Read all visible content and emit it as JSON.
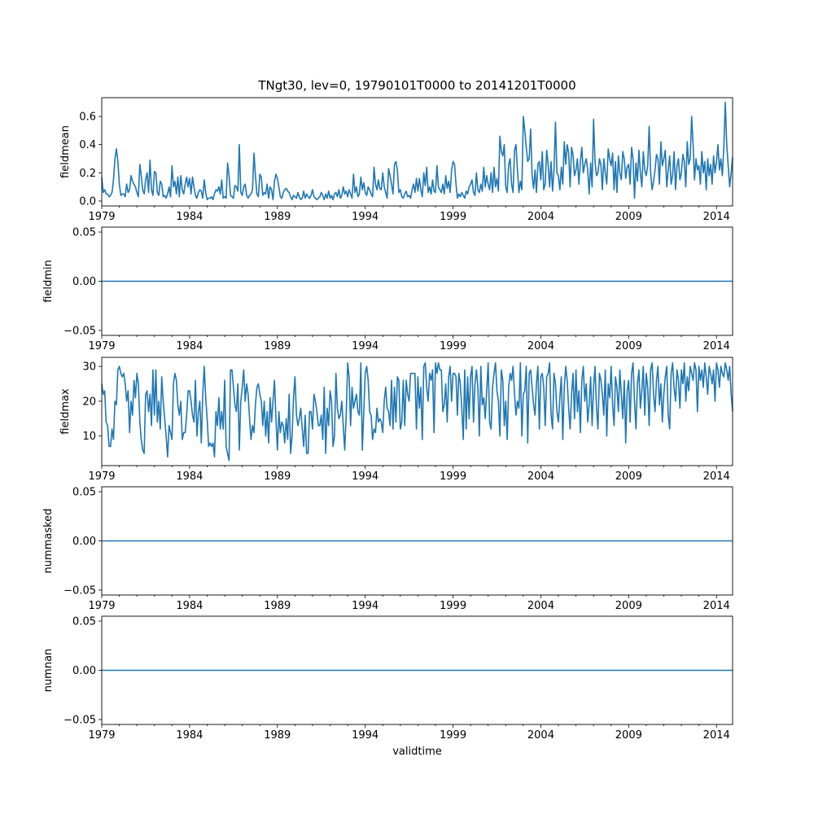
{
  "chart_data": {
    "type": "line",
    "title": "TNgt30, lev=0, 19790101T0000 to 20141201T0000",
    "xlabel": "validtime",
    "x_start": "1979-01",
    "x_end": "2014-12",
    "x_frequency": "monthly",
    "x_tick_labels": [
      "1979",
      "1984",
      "1989",
      "1994",
      "1999",
      "2004",
      "2009",
      "2014"
    ],
    "line_color": "#1f77b4",
    "grid": false,
    "panels": [
      {
        "ylabel": "fieldmean",
        "ylim": [
          -0.035,
          0.733
        ],
        "yticks": [
          0.0,
          0.2,
          0.4,
          0.6
        ],
        "ytick_labels": [
          "0.0",
          "0.2",
          "0.4",
          "0.6"
        ],
        "values": [
          0.17,
          0.06,
          0.08,
          0.05,
          0.05,
          0.03,
          0.04,
          0.06,
          0.15,
          0.3,
          0.37,
          0.28,
          0.12,
          0.04,
          0.05,
          0.05,
          0.03,
          0.12,
          0.06,
          0.08,
          0.18,
          0.14,
          0.12,
          0.1,
          0.06,
          0.03,
          0.26,
          0.18,
          0.08,
          0.05,
          0.15,
          0.2,
          0.06,
          0.29,
          0.08,
          0.04,
          0.21,
          0.2,
          0.06,
          0.04,
          0.14,
          0.12,
          0.03,
          0.04,
          0.02,
          0.05,
          0.1,
          0.03,
          0.25,
          0.1,
          0.14,
          0.05,
          0.17,
          0.03,
          0.18,
          0.08,
          0.05,
          0.12,
          0.17,
          0.1,
          0.16,
          0.05,
          0.17,
          0.1,
          0.04,
          0.02,
          0.06,
          0.08,
          0.07,
          0.02,
          0.15,
          0.06,
          0.01,
          0.02,
          0.02,
          0.03,
          0.01,
          0.05,
          0.08,
          0.07,
          0.1,
          0.05,
          0.15,
          0.02,
          0.03,
          0.02,
          0.27,
          0.18,
          0.04,
          0.03,
          0.02,
          0.11,
          0.1,
          0.07,
          0.4,
          0.06,
          0.04,
          0.1,
          0.12,
          0.04,
          0.02,
          0.04,
          0.05,
          0.08,
          0.34,
          0.18,
          0.05,
          0.03,
          0.19,
          0.17,
          0.04,
          0.06,
          0.05,
          0.12,
          0.02,
          0.1,
          0.08,
          0.01,
          0.14,
          0.19,
          0.16,
          0.1,
          0.03,
          0.02,
          0.06,
          0.08,
          0.09,
          0.07,
          0.06,
          0.03,
          0.01,
          0.04,
          0.03,
          0.02,
          0.06,
          0.03,
          0.01,
          0.02,
          0.07,
          0.02,
          0.05,
          0.03,
          0.02,
          0.04,
          0.08,
          0.03,
          0.02,
          0.01,
          0.02,
          0.03,
          0.06,
          0.04,
          0.01,
          0.05,
          0.02,
          0.07,
          0.02,
          0.04,
          0.01,
          0.05,
          0.06,
          0.03,
          0.08,
          0.02,
          0.04,
          0.1,
          0.05,
          0.07,
          0.03,
          0.08,
          0.05,
          0.02,
          0.19,
          0.06,
          0.1,
          0.03,
          0.05,
          0.17,
          0.08,
          0.13,
          0.06,
          0.04,
          0.1,
          0.08,
          0.05,
          0.03,
          0.24,
          0.12,
          0.08,
          0.15,
          0.09,
          0.08,
          0.2,
          0.1,
          0.06,
          0.02,
          0.23,
          0.18,
          0.12,
          0.05,
          0.26,
          0.28,
          0.22,
          0.06,
          0.08,
          0.03,
          0.02,
          0.05,
          0.07,
          0.03,
          0.04,
          0.02,
          0.08,
          0.12,
          0.06,
          0.16,
          0.07,
          0.16,
          0.08,
          0.03,
          0.2,
          0.11,
          0.24,
          0.06,
          0.1,
          0.05,
          0.15,
          0.07,
          0.06,
          0.25,
          0.1,
          0.08,
          0.06,
          0.12,
          0.05,
          0.18,
          0.09,
          0.14,
          0.06,
          0.22,
          0.28,
          0.26,
          0.12,
          0.02,
          0.05,
          0.03,
          0.06,
          0.04,
          0.02,
          0.07,
          0.05,
          0.1,
          0.12,
          0.15,
          0.06,
          0.04,
          0.2,
          0.08,
          0.06,
          0.12,
          0.07,
          0.24,
          0.1,
          0.18,
          0.12,
          0.08,
          0.2,
          0.06,
          0.24,
          0.1,
          0.16,
          0.07,
          0.46,
          0.35,
          0.32,
          0.4,
          0.1,
          0.06,
          0.26,
          0.3,
          0.12,
          0.06,
          0.36,
          0.4,
          0.22,
          0.06,
          0.14,
          0.08,
          0.6,
          0.5,
          0.38,
          0.28,
          0.3,
          0.51,
          0.18,
          0.09,
          0.22,
          0.06,
          0.26,
          0.28,
          0.15,
          0.35,
          0.08,
          0.12,
          0.36,
          0.26,
          0.1,
          0.28,
          0.07,
          0.22,
          0.56,
          0.2,
          0.18,
          0.08,
          0.24,
          0.12,
          0.42,
          0.26,
          0.4,
          0.34,
          0.1,
          0.38,
          0.33,
          0.18,
          0.22,
          0.3,
          0.12,
          0.28,
          0.38,
          0.2,
          0.26,
          0.3,
          0.22,
          0.05,
          0.27,
          0.1,
          0.58,
          0.28,
          0.18,
          0.2,
          0.3,
          0.26,
          0.08,
          0.3,
          0.2,
          0.12,
          0.37,
          0.3,
          0.25,
          0.34,
          0.08,
          0.28,
          0.06,
          0.32,
          0.2,
          0.15,
          0.35,
          0.3,
          0.16,
          0.24,
          0.26,
          0.12,
          0.38,
          0.3,
          0.02,
          0.27,
          0.14,
          0.36,
          0.2,
          0.1,
          0.35,
          0.22,
          0.18,
          0.25,
          0.53,
          0.2,
          0.08,
          0.14,
          0.22,
          0.33,
          0.3,
          0.12,
          0.42,
          0.25,
          0.3,
          0.36,
          0.1,
          0.22,
          0.32,
          0.12,
          0.18,
          0.35,
          0.08,
          0.25,
          0.3,
          0.15,
          0.2,
          0.33,
          0.28,
          0.1,
          0.42,
          0.26,
          0.3,
          0.6,
          0.4,
          0.15,
          0.3,
          0.22,
          0.25,
          0.12,
          0.35,
          0.2,
          0.28,
          0.08,
          0.3,
          0.18,
          0.26,
          0.12,
          0.32,
          0.2,
          0.28,
          0.4,
          0.22,
          0.3,
          0.18,
          0.38,
          0.7,
          0.4,
          0.25,
          0.1,
          0.2,
          0.31
        ]
      },
      {
        "ylabel": "fieldmin",
        "ylim": [
          -0.055,
          0.055
        ],
        "yticks": [
          -0.05,
          0.0,
          0.05
        ],
        "ytick_labels": [
          "−0.05",
          "0.00",
          "0.05"
        ],
        "constant": 0
      },
      {
        "ylabel": "fieldmax",
        "ylim": [
          1.5,
          32.6
        ],
        "yticks": [
          10,
          20,
          30
        ],
        "ytick_labels": [
          "10",
          "20",
          "30"
        ],
        "values": [
          25,
          22,
          23,
          14,
          13,
          7,
          7,
          12,
          9,
          20,
          19,
          29,
          30,
          28,
          27,
          28,
          25,
          20,
          23,
          11,
          20,
          16,
          26,
          21,
          28,
          25,
          14,
          9,
          6,
          5,
          22,
          23,
          17,
          22,
          13,
          29,
          16,
          29,
          14,
          20,
          12,
          27,
          20,
          15,
          10,
          4,
          13,
          11,
          9,
          25,
          28,
          26,
          19,
          16,
          20,
          9,
          11,
          11,
          16,
          23,
          23,
          20,
          16,
          14,
          26,
          10,
          17,
          20,
          8,
          22,
          30,
          21,
          15,
          7,
          8,
          7,
          8,
          4,
          17,
          13,
          21,
          12,
          17,
          12,
          26,
          7,
          5,
          3,
          29,
          29,
          24,
          19,
          17,
          25,
          6,
          20,
          24,
          29,
          20,
          25,
          22,
          15,
          9,
          13,
          11,
          19,
          24,
          25,
          22,
          20,
          13,
          20,
          10,
          17,
          8,
          21,
          14,
          20,
          26,
          15,
          6,
          17,
          11,
          14,
          13,
          8,
          15,
          9,
          22,
          5,
          10,
          21,
          27,
          16,
          13,
          15,
          18,
          12,
          7,
          16,
          5,
          5,
          17,
          17,
          12,
          22,
          20,
          17,
          13,
          13,
          16,
          9,
          24,
          5,
          18,
          13,
          23,
          20,
          7,
          10,
          28,
          18,
          15,
          16,
          20,
          13,
          6,
          16,
          31,
          27,
          13,
          24,
          18,
          20,
          22,
          17,
          16,
          31,
          6,
          17,
          28,
          30,
          26,
          17,
          16,
          9,
          12,
          11,
          18,
          14,
          15,
          14,
          11,
          20,
          24,
          18,
          17,
          13,
          26,
          12,
          24,
          14,
          27,
          26,
          12,
          14,
          26,
          13,
          26,
          22,
          20,
          28,
          28,
          28,
          28,
          12,
          27,
          18,
          24,
          9,
          30,
          31,
          24,
          20,
          28,
          26,
          29,
          11,
          31,
          28,
          31,
          29,
          29,
          17,
          19,
          25,
          14,
          27,
          30,
          20,
          28,
          28,
          27,
          16,
          28,
          25,
          18,
          9,
          29,
          12,
          27,
          15,
          27,
          30,
          14,
          25,
          29,
          24,
          10,
          30,
          19,
          21,
          15,
          23,
          31,
          14,
          12,
          24,
          28,
          31,
          23,
          20,
          10,
          29,
          26,
          13,
          20,
          9,
          24,
          28,
          26,
          30,
          22,
          16,
          20,
          18,
          31,
          10,
          22,
          23,
          30,
          8,
          28,
          29,
          24,
          19,
          16,
          25,
          30,
          12,
          27,
          28,
          24,
          13,
          27,
          28,
          31,
          16,
          12,
          28,
          25,
          17,
          14,
          21,
          27,
          9,
          24,
          30,
          26,
          18,
          12,
          22,
          28,
          15,
          29,
          17,
          23,
          11,
          26,
          30,
          20,
          25,
          14,
          19,
          27,
          13,
          24,
          30,
          18,
          12,
          28,
          26,
          22,
          16,
          29,
          10,
          25,
          21,
          30,
          19,
          13,
          27,
          24,
          17,
          29,
          22,
          15,
          26,
          8,
          23,
          26,
          14,
          28,
          31,
          20,
          12,
          25,
          29,
          18,
          23,
          30,
          16,
          28,
          24,
          13,
          29,
          31,
          22,
          17,
          26,
          30,
          19,
          25,
          14,
          22,
          27,
          30,
          16,
          12,
          28,
          31,
          24,
          20,
          29,
          26,
          18,
          29,
          25,
          31,
          20,
          27,
          23,
          30,
          28,
          26,
          31,
          29,
          17,
          30,
          26,
          29,
          24,
          31,
          27,
          22,
          30,
          28,
          25,
          29,
          20,
          31,
          29,
          24,
          30,
          28,
          27,
          31,
          29,
          26,
          30,
          22,
          17
        ]
      },
      {
        "ylabel": "nummasked",
        "ylim": [
          -0.055,
          0.055
        ],
        "yticks": [
          -0.05,
          0.0,
          0.05
        ],
        "ytick_labels": [
          "−0.05",
          "0.00",
          "0.05"
        ],
        "constant": 0
      },
      {
        "ylabel": "numnan",
        "ylim": [
          -0.055,
          0.055
        ],
        "yticks": [
          -0.05,
          0.0,
          0.05
        ],
        "ytick_labels": [
          "−0.05",
          "0.00",
          "0.05"
        ],
        "constant": 0
      }
    ]
  }
}
